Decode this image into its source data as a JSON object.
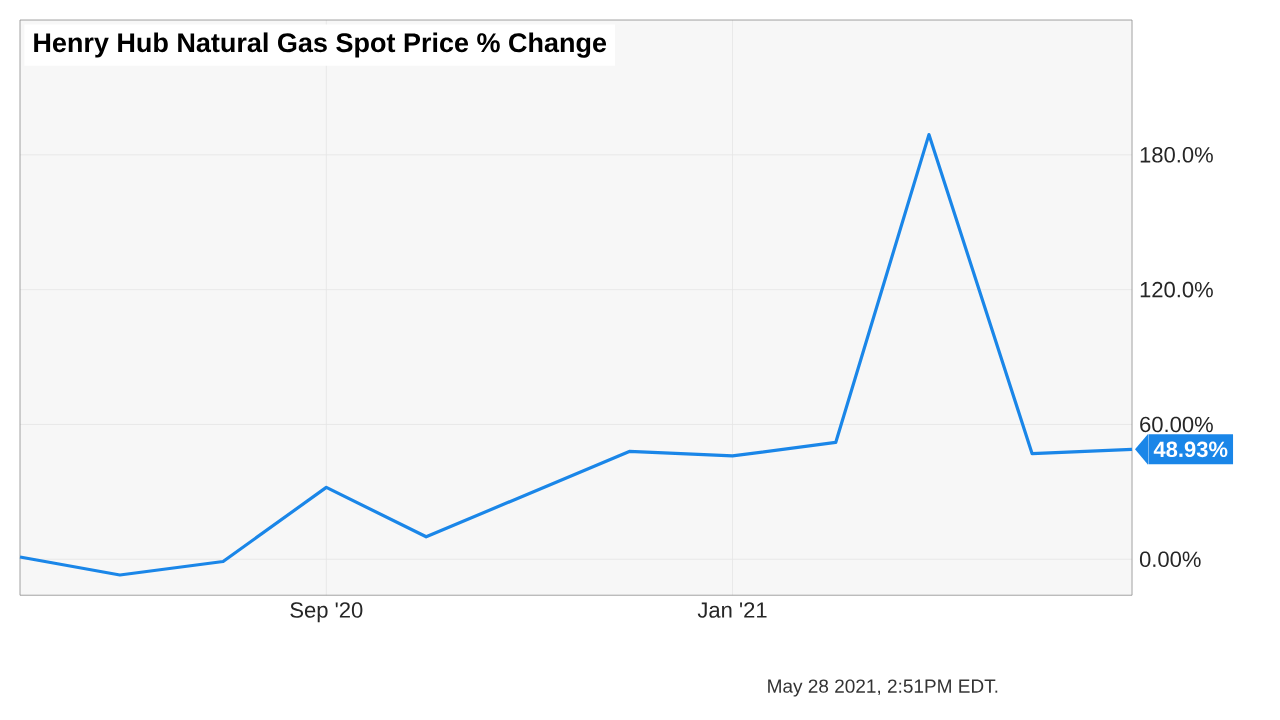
{
  "chart_data": {
    "type": "line",
    "title": "Henry Hub Natural Gas Spot Price % Change",
    "x": [
      "2020-06-01",
      "2020-07-01",
      "2020-08-01",
      "2020-09-01",
      "2020-10-01",
      "2020-12-01",
      "2021-01-01",
      "2021-02-01",
      "2021-03-01",
      "2021-04-01",
      "2021-05-01"
    ],
    "series": [
      {
        "color": "#1a86e8",
        "values": [
          1,
          -7,
          -1,
          32,
          10,
          48,
          46,
          52,
          189,
          47,
          48.93
        ]
      }
    ],
    "xlim": [
      "2020-06-01",
      "2021-05-01"
    ],
    "xticks": [
      {
        "value": "2020-09-01",
        "label": "Sep '20"
      },
      {
        "value": "2021-01-01",
        "label": "Jan '21"
      }
    ],
    "ylim": [
      -16,
      240
    ],
    "yticks": [
      {
        "value": 0,
        "label": "0.00%"
      },
      {
        "value": 60,
        "label": "60.00%"
      },
      {
        "value": 120,
        "label": "120.0%"
      },
      {
        "value": 180,
        "label": "180.0%"
      }
    ],
    "grid": true,
    "marker": "none",
    "line_style": "solid",
    "annotations": [
      {
        "text": "48.93%",
        "x": "2021-05-01",
        "y": 48.93
      },
      "May 28 2021, 2:51PM EDT."
    ]
  }
}
